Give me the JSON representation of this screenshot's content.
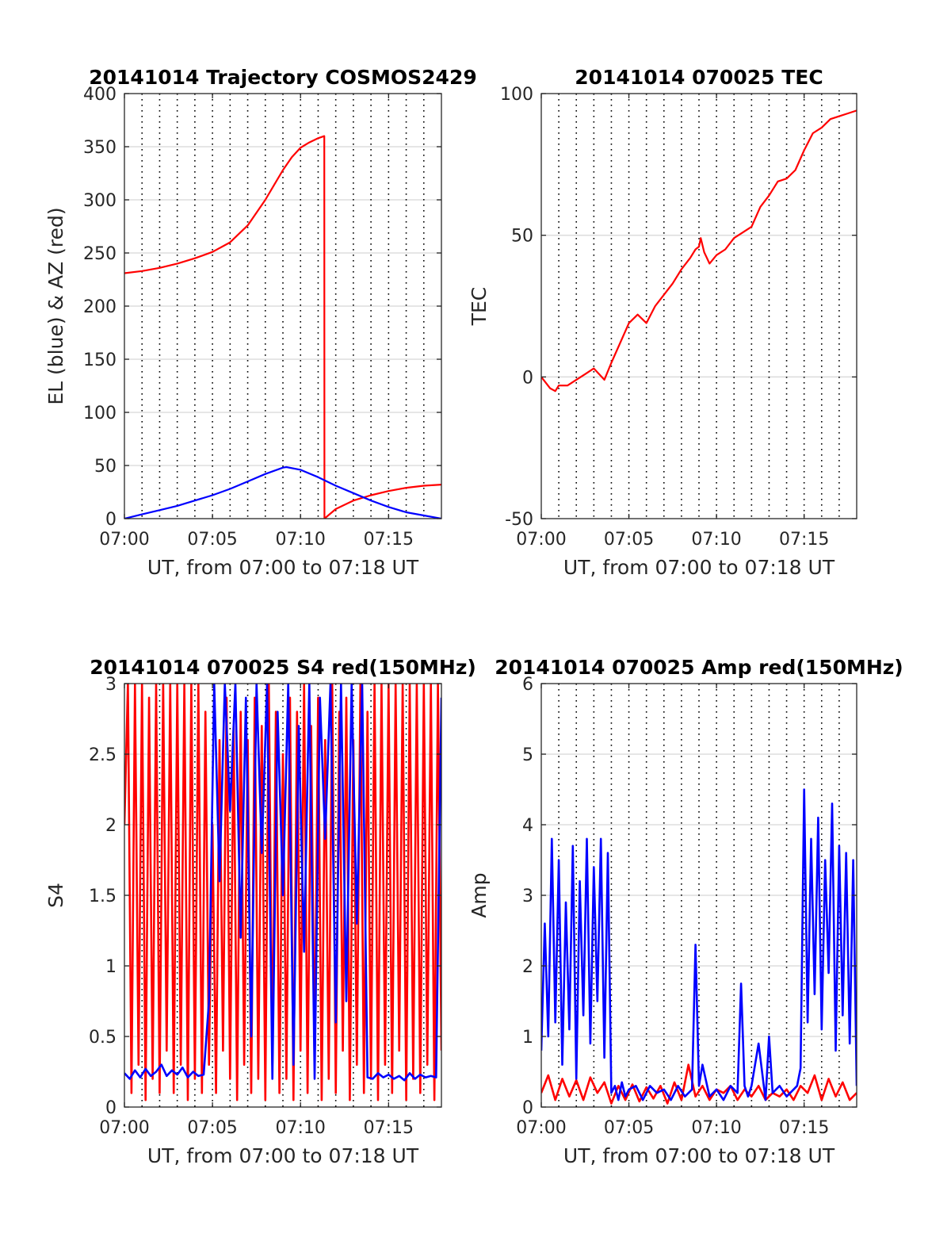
{
  "colors": {
    "red": "#ff0000",
    "blue": "#0000ff"
  },
  "chart_data": [
    {
      "type": "line",
      "title": "20141014 Trajectory COSMOS2429",
      "xlabel": "UT, from 07:00 to 07:18 UT",
      "ylabel": "EL (blue) & AZ (red)",
      "xlim": [
        0,
        18
      ],
      "ylim": [
        0,
        400
      ],
      "xticks": [
        "07:00",
        "07:05",
        "07:10",
        "07:15"
      ],
      "yticks": [
        "0",
        "50",
        "100",
        "150",
        "200",
        "250",
        "300",
        "350",
        "400"
      ],
      "grid": "dotted vertical lines every minute, light horizontal lines at y ticks",
      "series": [
        {
          "color": "red",
          "x": [
            0,
            1,
            2,
            3,
            4,
            5,
            6,
            7,
            7.5,
            8,
            8.5,
            9,
            9.5,
            10,
            10.5,
            11,
            11.35,
            11.36,
            12,
            13,
            14,
            15,
            16,
            17,
            18
          ],
          "y": [
            231,
            233,
            236,
            240,
            245,
            251,
            260,
            276,
            288,
            300,
            314,
            328,
            340,
            349,
            354,
            358,
            360,
            0,
            9,
            17,
            22,
            26,
            29,
            31,
            32
          ]
        },
        {
          "color": "blue",
          "x": [
            0,
            1,
            2,
            3,
            4,
            5,
            6,
            7,
            8,
            9,
            9.2,
            10,
            11,
            12,
            13,
            14,
            15,
            16,
            17,
            18
          ],
          "y": [
            0,
            4,
            8,
            12,
            17,
            22,
            28,
            35,
            42,
            48,
            48.5,
            46,
            39,
            31,
            24,
            17,
            11,
            6,
            3,
            0
          ]
        }
      ]
    },
    {
      "type": "line",
      "title": "20141014 070025 TEC",
      "xlabel": "UT, from 07:00 to 07:18 UT",
      "ylabel": "TEC",
      "xlim": [
        0,
        18
      ],
      "ylim": [
        -50,
        100
      ],
      "xticks": [
        "07:00",
        "07:05",
        "07:10",
        "07:15"
      ],
      "yticks": [
        "-50",
        "0",
        "50",
        "100"
      ],
      "grid": "dotted vertical lines every minute, light horizontal lines at y ticks",
      "series": [
        {
          "color": "red",
          "x": [
            0,
            0.5,
            0.8,
            1,
            1.5,
            2,
            2.5,
            3,
            3.3,
            3.6,
            4,
            4.5,
            5,
            5.5,
            6,
            6.5,
            7,
            7.5,
            8,
            8.5,
            8.8,
            9,
            9.1,
            9.3,
            9.6,
            10,
            10.5,
            11,
            11.5,
            12,
            12.5,
            13,
            13.5,
            14,
            14.5,
            15,
            15.5,
            16,
            16.5,
            17,
            17.5,
            18
          ],
          "y": [
            0,
            -4,
            -5,
            -3,
            -3,
            -1,
            1,
            3,
            1,
            -1,
            5,
            12,
            19,
            22,
            19,
            25,
            29,
            33,
            38,
            42,
            45,
            46,
            49,
            44,
            40,
            43,
            45,
            49,
            51,
            53,
            60,
            64,
            69,
            70,
            73,
            80,
            86,
            88,
            91,
            92,
            93,
            94
          ]
        }
      ]
    },
    {
      "type": "line",
      "title": "20141014 070025 S4 red(150MHz)",
      "xlabel": "UT, from 07:00 to 07:18 UT",
      "ylabel": "S4",
      "xlim": [
        0,
        18
      ],
      "ylim": [
        0,
        3
      ],
      "xticks": [
        "07:00",
        "07:05",
        "07:10",
        "07:15"
      ],
      "yticks": [
        "0",
        "0.5",
        "1",
        "1.5",
        "2",
        "2.5",
        "3"
      ],
      "grid": "dotted vertical lines every minute, light horizontal lines at y ticks",
      "series": [
        {
          "color": "red",
          "x": [
            0,
            0.2,
            0.4,
            0.6,
            0.8,
            1,
            1.2,
            1.4,
            1.6,
            1.8,
            2,
            2.2,
            2.4,
            2.6,
            2.8,
            3,
            3.2,
            3.4,
            3.6,
            3.8,
            4,
            4.2,
            4.4,
            4.6,
            4.8,
            5,
            5.2,
            5.4,
            5.6,
            5.8,
            6,
            6.2,
            6.4,
            6.6,
            6.8,
            7,
            7.2,
            7.4,
            7.6,
            7.8,
            8,
            8.2,
            8.4,
            8.6,
            8.8,
            9,
            9.2,
            9.4,
            9.6,
            9.8,
            10,
            10.2,
            10.4,
            10.6,
            10.8,
            11,
            11.2,
            11.4,
            11.6,
            11.8,
            12,
            12.2,
            12.4,
            12.6,
            12.8,
            13,
            13.2,
            13.4,
            13.6,
            13.8,
            14,
            14.2,
            14.4,
            14.6,
            14.8,
            15,
            15.2,
            15.4,
            15.6,
            15.8,
            16,
            16.2,
            16.4,
            16.6,
            16.8,
            17,
            17.2,
            17.4,
            17.6,
            17.8,
            18
          ],
          "y": [
            2.0,
            3.0,
            0.1,
            3.0,
            0.3,
            3.0,
            0.05,
            2.9,
            0.2,
            3.0,
            0.1,
            3.0,
            0.4,
            3.0,
            0.1,
            3.0,
            0.3,
            3.0,
            0.05,
            3.0,
            0.2,
            3.0,
            0.1,
            2.8,
            0.3,
            2.0,
            0.1,
            2.6,
            0.4,
            2.9,
            0.2,
            2.7,
            0.05,
            2.8,
            0.3,
            2.6,
            0.1,
            2.9,
            0.2,
            2.7,
            0.05,
            3.0,
            0.3,
            2.8,
            0.1,
            2.5,
            0.2,
            2.9,
            0.05,
            2.8,
            0.4,
            3.0,
            0.1,
            2.7,
            0.3,
            2.9,
            0.05,
            2.6,
            0.2,
            3.0,
            0.1,
            2.8,
            0.4,
            2.9,
            0.05,
            2.6,
            0.3,
            3.0,
            0.1,
            2.8,
            0.2,
            3.0,
            0.05,
            3.0,
            0.3,
            3.0,
            0.1,
            3.0,
            0.4,
            3.0,
            0.05,
            3.0,
            0.2,
            3.0,
            0.1,
            3.0,
            0.3,
            3.0,
            0.05,
            3.0,
            0.4
          ]
        },
        {
          "color": "blue",
          "x": [
            0,
            0.3,
            0.6,
            0.9,
            1.2,
            1.5,
            1.8,
            2.1,
            2.4,
            2.7,
            3,
            3.3,
            3.6,
            3.9,
            4.2,
            4.5,
            4.8,
            5.1,
            5.4,
            5.7,
            6,
            6.3,
            6.6,
            6.9,
            7.2,
            7.5,
            7.8,
            8.1,
            8.4,
            8.7,
            9,
            9.3,
            9.6,
            9.9,
            10.2,
            10.5,
            10.8,
            11.1,
            11.4,
            11.7,
            12,
            12.3,
            12.6,
            12.9,
            13.2,
            13.5,
            13.8,
            14.1,
            14.4,
            14.7,
            15,
            15.3,
            15.6,
            15.9,
            16.2,
            16.5,
            16.8,
            17.1,
            17.4,
            17.7,
            18
          ],
          "y": [
            0.24,
            0.2,
            0.26,
            0.21,
            0.27,
            0.22,
            0.25,
            0.3,
            0.22,
            0.26,
            0.23,
            0.28,
            0.21,
            0.25,
            0.22,
            0.23,
            0.75,
            3.0,
            1.6,
            3.0,
            2.1,
            3.0,
            1.2,
            2.9,
            0.5,
            3.0,
            1.8,
            3.0,
            0.2,
            2.8,
            1.5,
            3.0,
            0.3,
            2.7,
            1.1,
            3.0,
            0.2,
            2.9,
            1.9,
            3.0,
            0.6,
            3.0,
            0.75,
            3.0,
            1.3,
            3.0,
            0.21,
            0.2,
            0.24,
            0.21,
            0.23,
            0.2,
            0.22,
            0.19,
            0.24,
            0.2,
            0.23,
            0.21,
            0.22,
            0.21,
            2.9
          ]
        }
      ]
    },
    {
      "type": "line",
      "title": "20141014 070025 Amp red(150MHz)",
      "xlabel": "UT, from 07:00 to 07:18 UT",
      "ylabel": "Amp",
      "xlim": [
        0,
        18
      ],
      "ylim": [
        0,
        6
      ],
      "xticks": [
        "07:00",
        "07:05",
        "07:10",
        "07:15"
      ],
      "yticks": [
        "0",
        "1",
        "2",
        "3",
        "4",
        "5",
        "6"
      ],
      "grid": "dotted vertical lines every minute, light horizontal lines at y ticks",
      "series": [
        {
          "color": "red",
          "x": [
            0,
            0.4,
            0.8,
            1.2,
            1.6,
            2,
            2.4,
            2.8,
            3.2,
            3.6,
            4,
            4.4,
            4.8,
            5.2,
            5.6,
            6,
            6.4,
            6.8,
            7.2,
            7.6,
            8,
            8.4,
            8.8,
            9.2,
            9.6,
            10,
            10.4,
            10.8,
            11.2,
            11.6,
            12,
            12.4,
            12.8,
            13.2,
            13.6,
            14,
            14.4,
            14.8,
            15.2,
            15.6,
            16,
            16.4,
            16.8,
            17.2,
            17.6,
            18
          ],
          "y": [
            0.2,
            0.45,
            0.1,
            0.4,
            0.15,
            0.38,
            0.1,
            0.42,
            0.2,
            0.35,
            0.05,
            0.3,
            0.1,
            0.32,
            0.08,
            0.28,
            0.12,
            0.3,
            0.05,
            0.35,
            0.1,
            0.6,
            0.15,
            0.3,
            0.1,
            0.25,
            0.2,
            0.3,
            0.1,
            0.25,
            0.15,
            0.3,
            0.1,
            0.2,
            0.15,
            0.25,
            0.1,
            0.3,
            0.2,
            0.45,
            0.1,
            0.4,
            0.15,
            0.35,
            0.1,
            0.2
          ]
        },
        {
          "color": "blue",
          "x": [
            0,
            0.2,
            0.4,
            0.6,
            0.8,
            1,
            1.2,
            1.4,
            1.6,
            1.8,
            2,
            2.2,
            2.4,
            2.6,
            2.8,
            3,
            3.2,
            3.4,
            3.6,
            3.8,
            4,
            4.2,
            4.4,
            4.6,
            4.8,
            5,
            5.4,
            5.8,
            6.2,
            6.6,
            7,
            7.4,
            7.8,
            8.2,
            8.6,
            8.8,
            9,
            9.2,
            9.6,
            10,
            10.4,
            10.8,
            11.2,
            11.4,
            11.6,
            11.8,
            12,
            12.4,
            12.8,
            13,
            13.2,
            13.6,
            14,
            14.4,
            14.6,
            14.8,
            15,
            15.2,
            15.4,
            15.6,
            15.8,
            16,
            16.2,
            16.4,
            16.6,
            16.8,
            17,
            17.2,
            17.4,
            17.6,
            17.8,
            18
          ],
          "y": [
            0.8,
            2.6,
            1.0,
            3.8,
            1.2,
            3.5,
            0.6,
            2.9,
            1.1,
            3.7,
            0.4,
            3.2,
            1.3,
            3.8,
            0.9,
            3.4,
            1.5,
            3.8,
            0.7,
            3.6,
            0.2,
            0.3,
            0.1,
            0.35,
            0.15,
            0.25,
            0.3,
            0.1,
            0.3,
            0.2,
            0.25,
            0.1,
            0.3,
            0.15,
            0.25,
            2.3,
            0.3,
            0.6,
            0.15,
            0.25,
            0.1,
            0.3,
            0.2,
            1.75,
            0.3,
            0.15,
            0.3,
            0.9,
            0.1,
            1.0,
            0.2,
            0.3,
            0.15,
            0.25,
            0.3,
            0.55,
            4.5,
            1.2,
            3.8,
            1.6,
            4.1,
            1.1,
            3.5,
            1.9,
            4.3,
            0.8,
            3.7,
            1.3,
            3.6,
            0.9,
            3.5,
            0.3
          ]
        }
      ]
    }
  ]
}
